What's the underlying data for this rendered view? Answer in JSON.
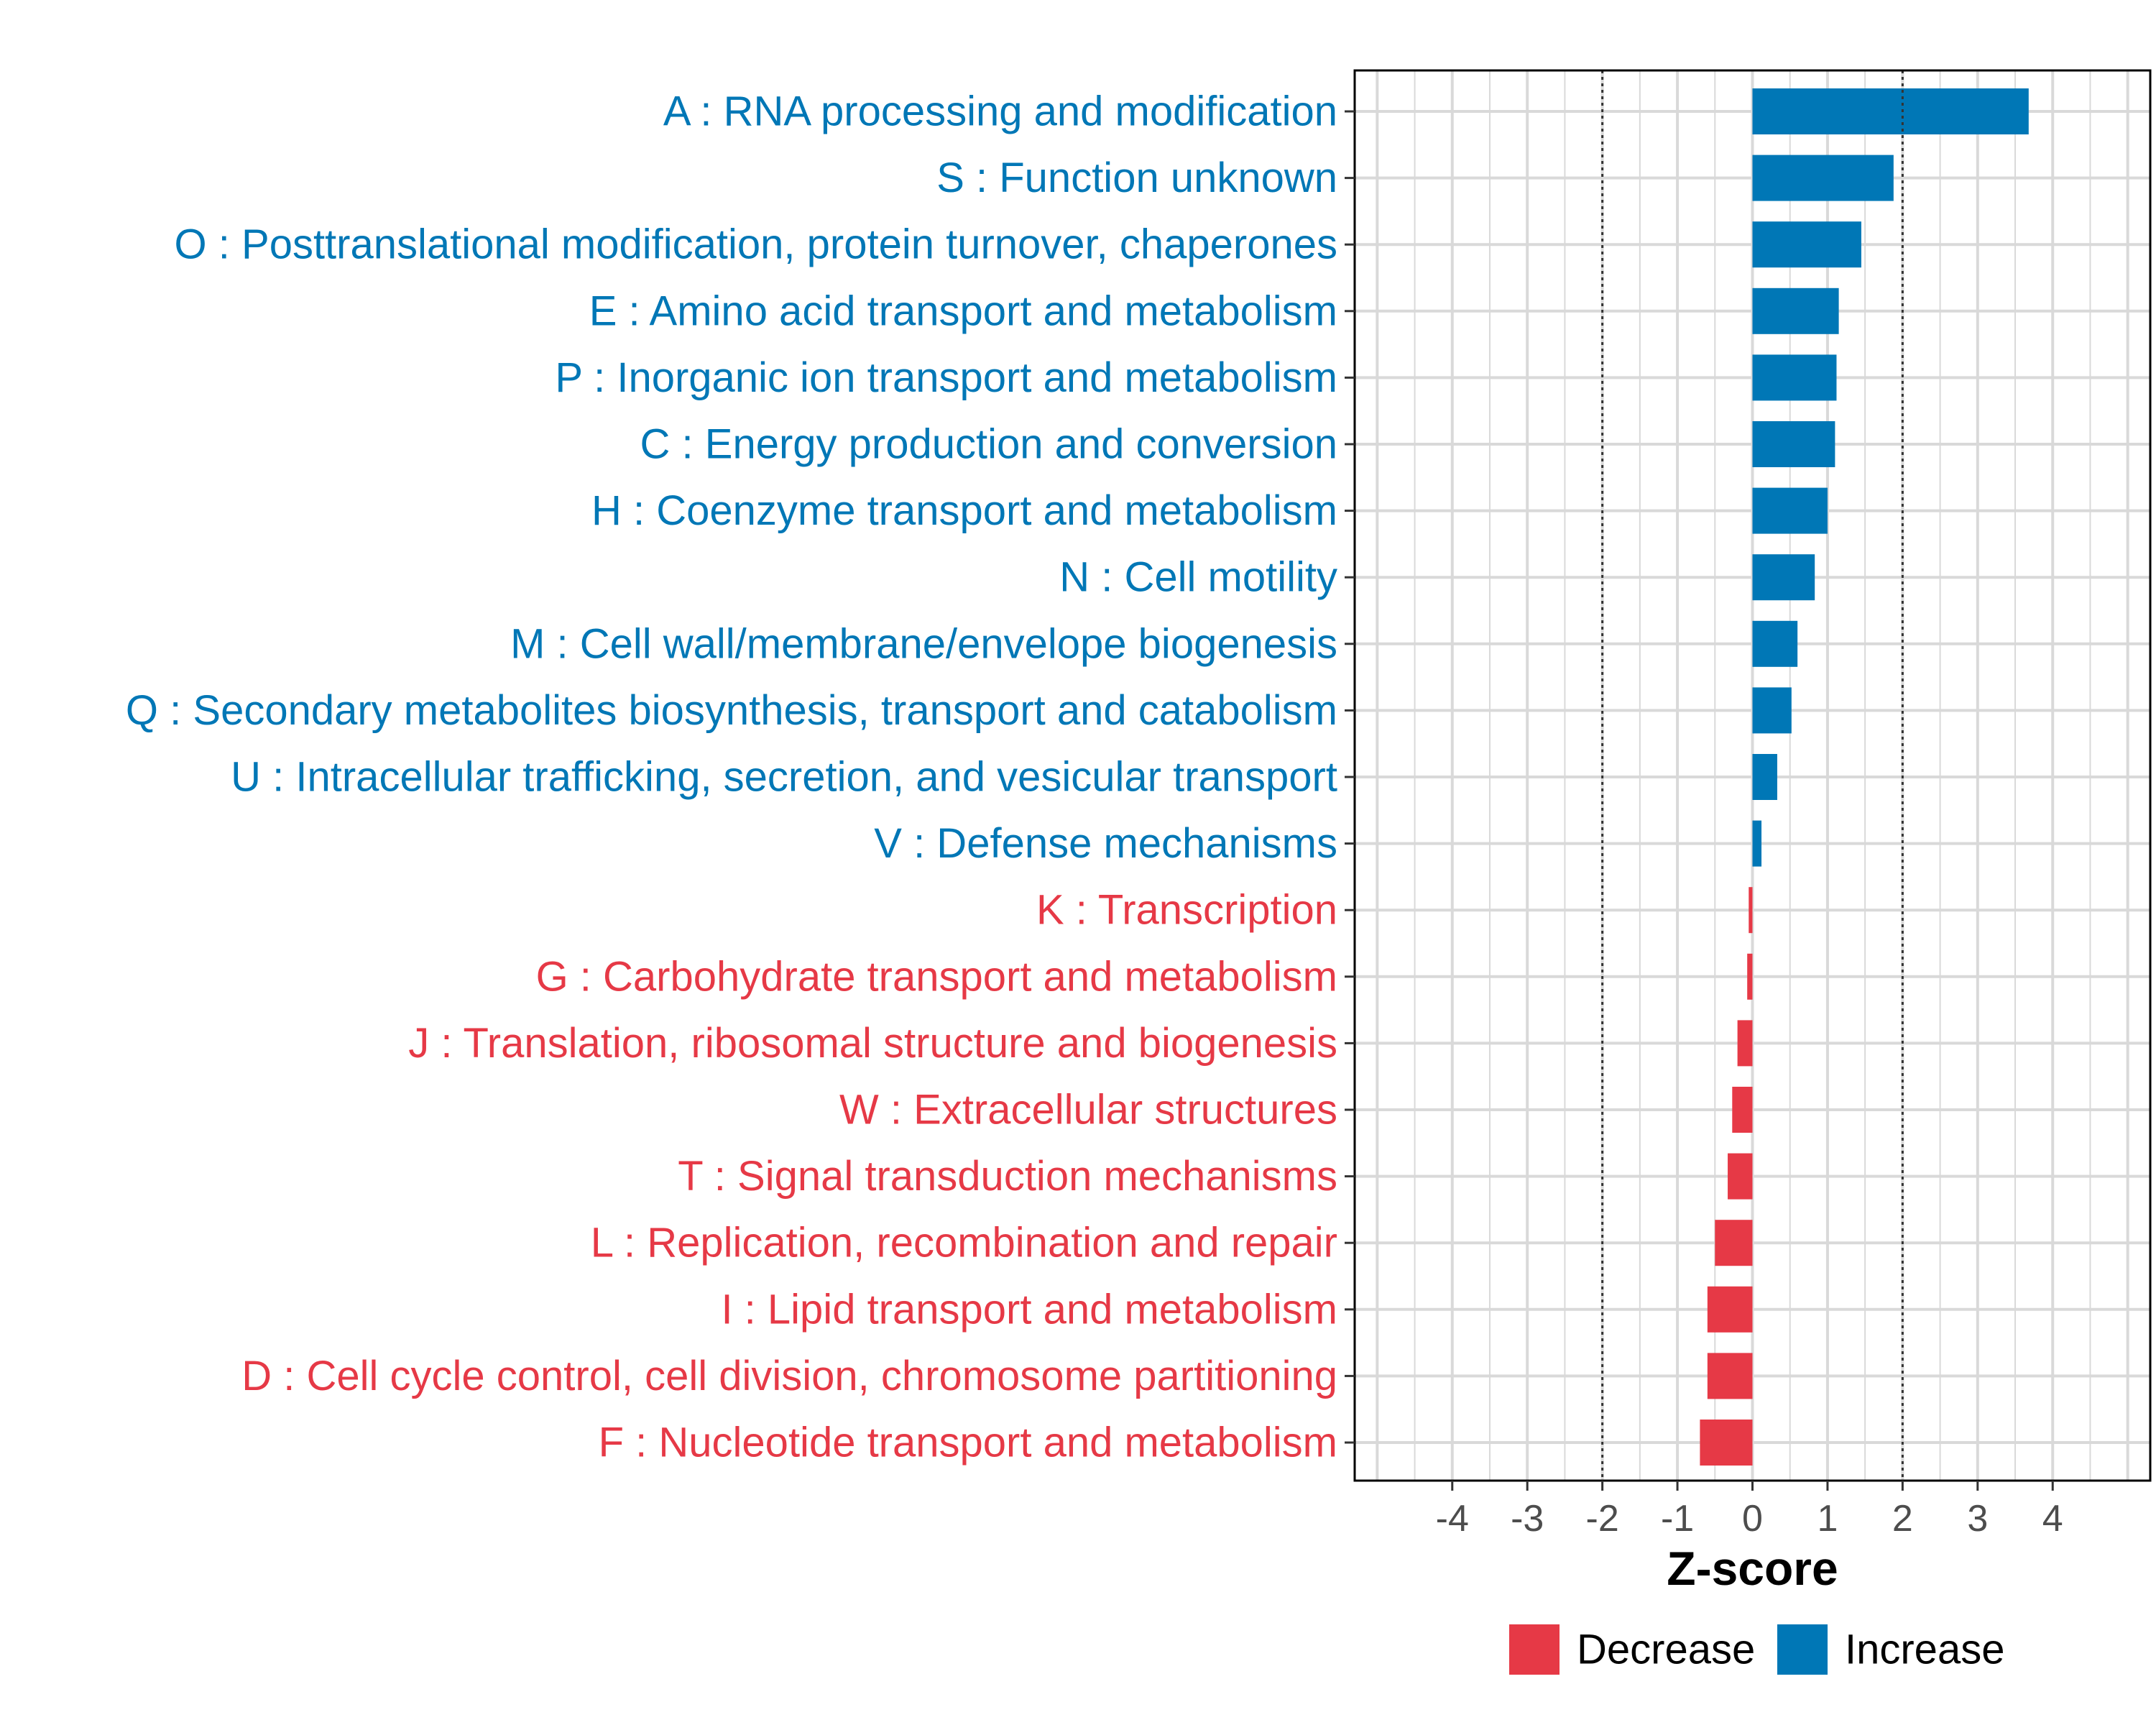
{
  "chart_data": {
    "type": "bar",
    "orientation": "horizontal",
    "xlabel": "Z-score",
    "ylabel": "",
    "xlim": [
      -5.3,
      5.3
    ],
    "x_ticks": [
      -4,
      -3,
      -2,
      -1,
      0,
      1,
      2,
      3,
      4
    ],
    "reference_lines": [
      -2,
      2
    ],
    "grid": true,
    "legend_position": "bottom",
    "colors": {
      "Decrease": "#E63946",
      "Increase": "#0077B6"
    },
    "legend": [
      {
        "label": "Decrease",
        "color": "#E63946"
      },
      {
        "label": "Increase",
        "color": "#0077B6"
      }
    ],
    "categories": [
      "A : RNA processing and modification",
      "S : Function unknown",
      "O : Posttranslational modification, protein turnover, chaperones",
      "E : Amino acid transport and metabolism",
      "P : Inorganic ion transport and metabolism",
      "C : Energy production and conversion",
      "H : Coenzyme transport and metabolism",
      "N : Cell motility",
      "M : Cell wall/membrane/envelope biogenesis",
      "Q : Secondary metabolites biosynthesis, transport and catabolism",
      "U : Intracellular trafficking, secretion, and vesicular transport",
      "V : Defense mechanisms",
      "K : Transcription",
      "G : Carbohydrate transport and metabolism",
      "J : Translation, ribosomal structure and biogenesis",
      "W : Extracellular structures",
      "T : Signal transduction mechanisms",
      "L : Replication, recombination and repair",
      "I : Lipid transport and metabolism",
      "D : Cell cycle control, cell division, chromosome partitioning",
      "F : Nucleotide transport and metabolism"
    ],
    "values": [
      3.68,
      1.88,
      1.45,
      1.15,
      1.12,
      1.1,
      1.0,
      0.83,
      0.6,
      0.52,
      0.33,
      0.12,
      -0.05,
      -0.07,
      -0.2,
      -0.27,
      -0.33,
      -0.5,
      -0.6,
      -0.6,
      -0.7
    ],
    "direction": [
      "Increase",
      "Increase",
      "Increase",
      "Increase",
      "Increase",
      "Increase",
      "Increase",
      "Increase",
      "Increase",
      "Increase",
      "Increase",
      "Increase",
      "Decrease",
      "Decrease",
      "Decrease",
      "Decrease",
      "Decrease",
      "Decrease",
      "Decrease",
      "Decrease",
      "Decrease"
    ]
  }
}
